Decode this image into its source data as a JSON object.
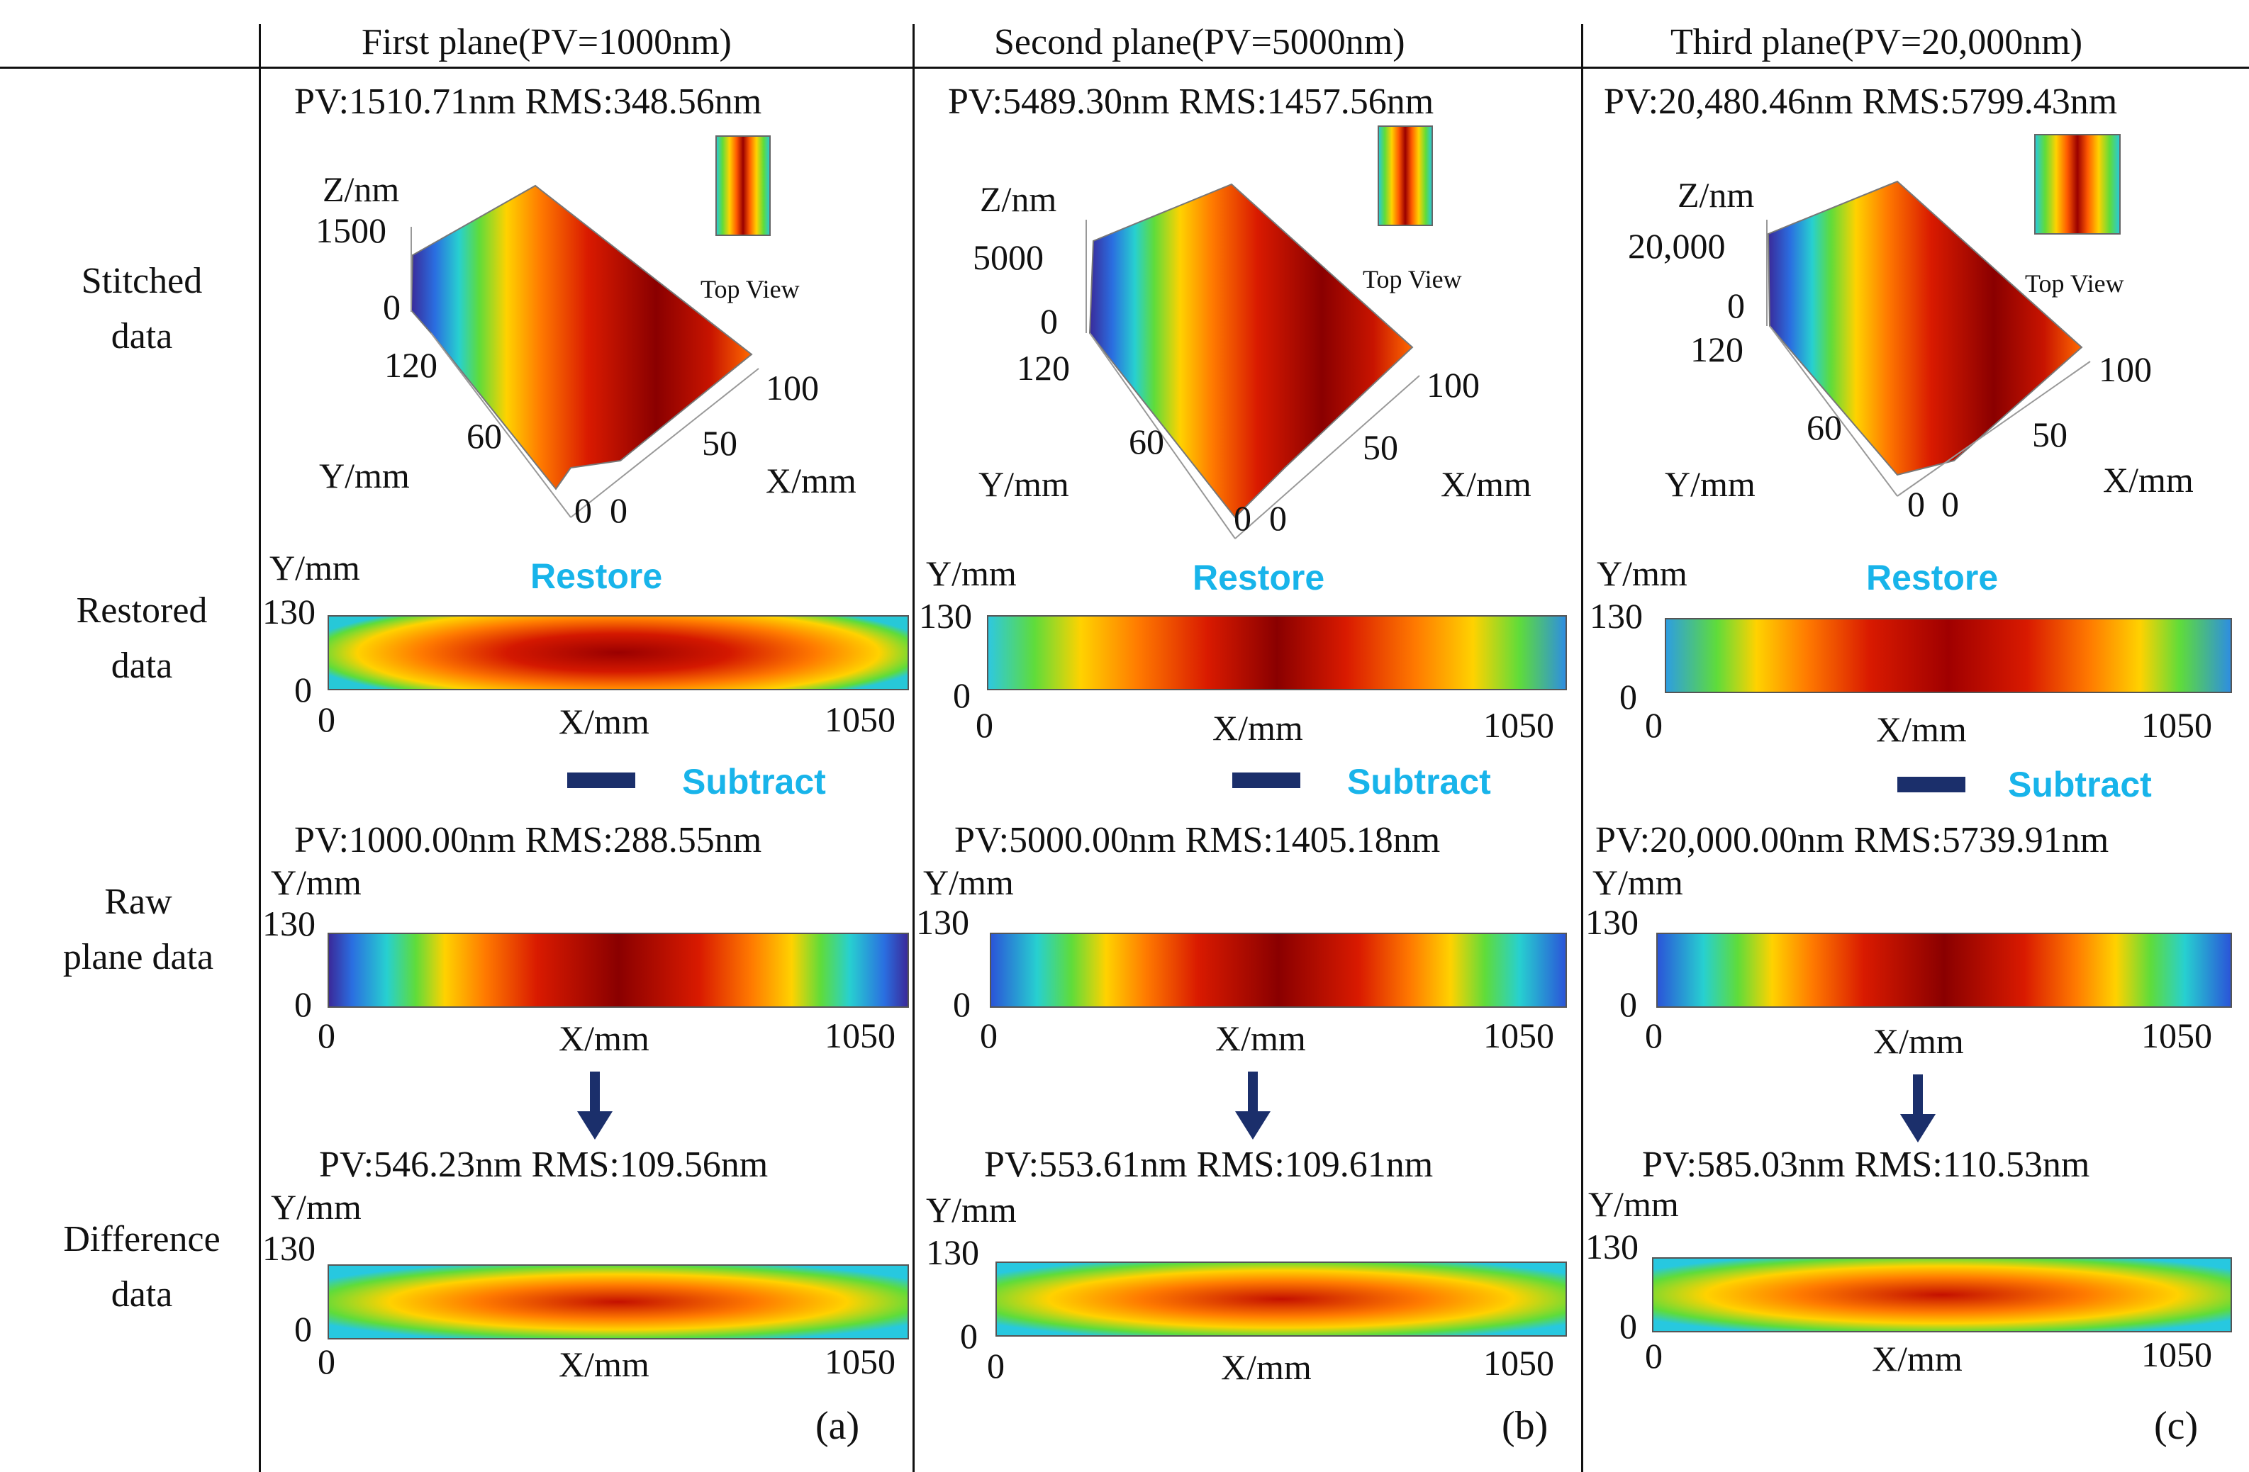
{
  "row_labels": {
    "stitched": [
      "Stitched",
      "data"
    ],
    "restored": [
      "Restored",
      "data"
    ],
    "raw": [
      "Raw",
      "plane data"
    ],
    "difference": [
      "Difference",
      "data"
    ]
  },
  "common": {
    "z_label": "Z/nm",
    "y_label": "Y/mm",
    "x_label": "X/mm",
    "top_view": "Top View",
    "restore": "Restore",
    "subtract": "Subtract",
    "strip_y_max": "130",
    "strip_y_min": "0",
    "strip_x_min": "0",
    "strip_x_max": "1050",
    "surf_y_120": "120",
    "surf_y_60": "60",
    "surf_x_100": "100",
    "surf_x_50": "50",
    "zero": "0"
  },
  "columns": [
    {
      "header": "First plane(PV=1000nm)",
      "stitched_stats": "PV:1510.71nm RMS:348.56nm",
      "z_max": "1500",
      "raw_stats": "PV:1000.00nm RMS:288.55nm",
      "diff_stats": "PV:546.23nm RMS:109.56nm",
      "tag": "(a)"
    },
    {
      "header": "Second plane(PV=5000nm)",
      "stitched_stats": "PV:5489.30nm RMS:1457.56nm",
      "z_max": "5000",
      "raw_stats": "PV:5000.00nm RMS:1405.18nm",
      "diff_stats": "PV:553.61nm RMS:109.61nm",
      "tag": "(b)"
    },
    {
      "header": "Third plane(PV=20,000nm)",
      "stitched_stats": "PV:20,480.46nm RMS:5799.43nm",
      "z_max": "20,000",
      "raw_stats": "PV:20,000.00nm RMS:5739.91nm",
      "diff_stats": "PV:585.03nm RMS:110.53nm",
      "tag": "(c)"
    }
  ],
  "colors": {
    "dark_red": "#8b0000",
    "red": "#dd1a00",
    "orange": "#ff7a00",
    "yellow": "#ffd400",
    "green": "#3dd43d",
    "cyan": "#1ec8e8",
    "blue": "#2a55d8",
    "navy": "#3a2a8a",
    "accent_text": "#18b4ea",
    "arrow": "#1b2f6b"
  }
}
